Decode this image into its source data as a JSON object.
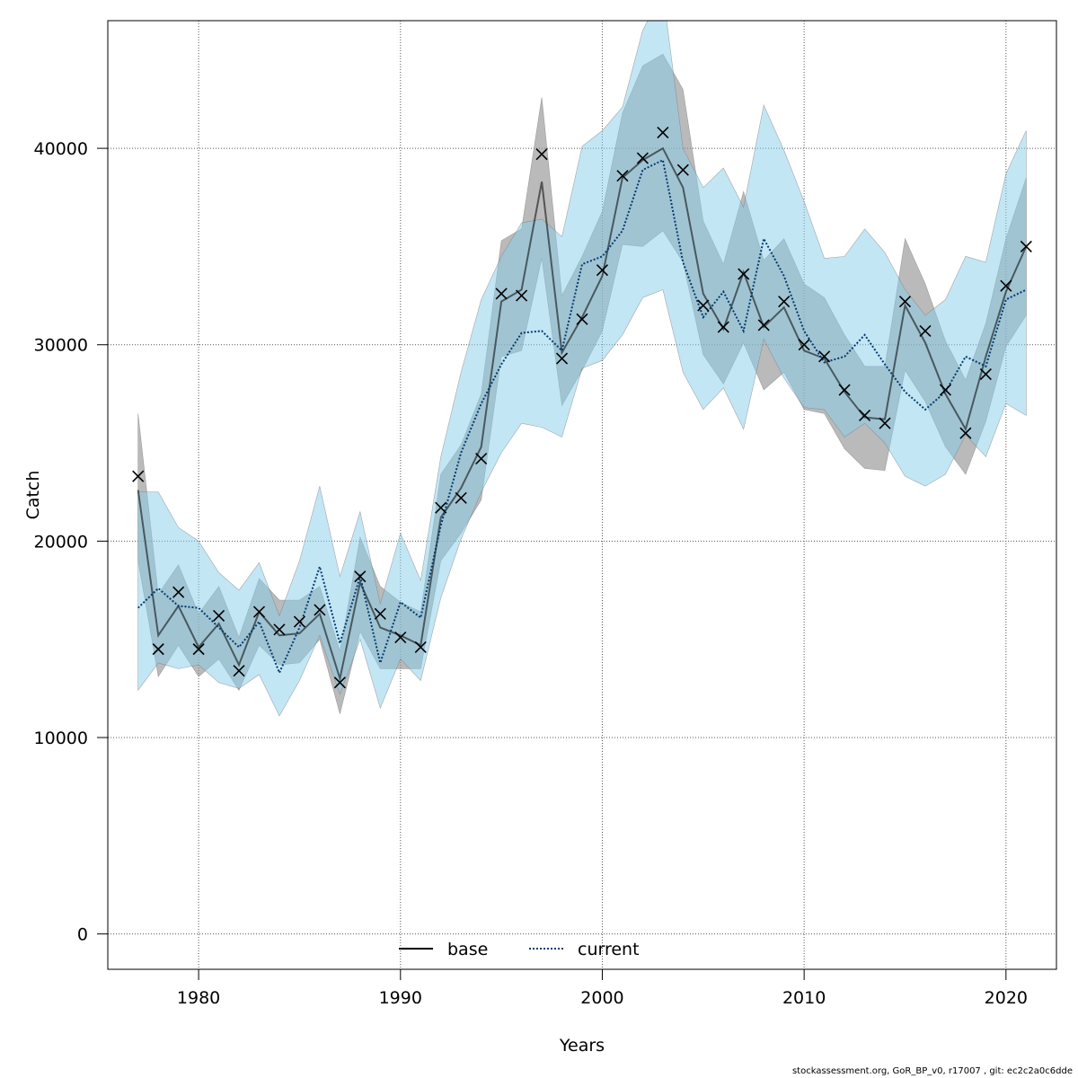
{
  "chart_data": {
    "type": "line",
    "title": "",
    "xlabel": "Years",
    "ylabel": "Catch",
    "xlim": [
      1975.5,
      2022.5
    ],
    "ylim": [
      -1800,
      46500
    ],
    "x_ticks": [
      1980,
      1990,
      2000,
      2010,
      2020
    ],
    "x_tick_labels": [
      "1980",
      "1990",
      "2000",
      "2010",
      "2020"
    ],
    "y_ticks": [
      0,
      10000,
      20000,
      30000,
      40000
    ],
    "y_tick_labels": [
      "0",
      "10000",
      "20000",
      "30000",
      "40000"
    ],
    "grid": true,
    "legend_position": "bottom-center",
    "years": [
      1977,
      1978,
      1979,
      1980,
      1981,
      1982,
      1983,
      1984,
      1985,
      1986,
      1987,
      1988,
      1989,
      1990,
      1991,
      1992,
      1993,
      1994,
      1995,
      1996,
      1997,
      1998,
      1999,
      2000,
      2001,
      2002,
      2003,
      2004,
      2005,
      2006,
      2007,
      2008,
      2009,
      2010,
      2011,
      2012,
      2013,
      2014,
      2015,
      2016,
      2017,
      2018,
      2019,
      2020,
      2021
    ],
    "observed": {
      "marker": "x",
      "values": [
        23300,
        14500,
        17400,
        14500,
        16200,
        13400,
        16400,
        15500,
        15900,
        16500,
        12800,
        18200,
        16300,
        15100,
        14600,
        21700,
        22200,
        24200,
        32600,
        32500,
        39700,
        29300,
        31300,
        33800,
        38600,
        39500,
        40800,
        38900,
        32000,
        30900,
        33600,
        31000,
        32200,
        30000,
        29400,
        27700,
        26400,
        26000,
        32200,
        30700,
        27700,
        25500,
        28500,
        33000,
        35000
      ]
    },
    "series": [
      {
        "name": "base",
        "color": "#000000",
        "band_color": "#8c8c8c",
        "line_style": "solid",
        "values": [
          22600,
          15200,
          16700,
          14600,
          15800,
          13700,
          16400,
          15200,
          15300,
          16300,
          13000,
          17900,
          15600,
          15200,
          14700,
          21200,
          22700,
          24800,
          32200,
          32800,
          38300,
          29600,
          31400,
          33500,
          38500,
          39400,
          40000,
          38000,
          32600,
          30800,
          33700,
          30900,
          31900,
          29700,
          29300,
          27600,
          26300,
          26200,
          32000,
          30100,
          27500,
          25700,
          29400,
          32700,
          35000
        ],
        "lower": [
          19000,
          13100,
          14700,
          13100,
          14000,
          12400,
          14700,
          13700,
          13800,
          15000,
          11200,
          15400,
          13500,
          13500,
          13500,
          19000,
          20400,
          22100,
          29400,
          29700,
          34400,
          26900,
          28700,
          30700,
          35100,
          35000,
          35800,
          34200,
          29500,
          28000,
          30100,
          27700,
          28600,
          26700,
          26500,
          24700,
          23700,
          23600,
          28700,
          27100,
          24800,
          23400,
          26100,
          29900,
          31500
        ],
        "upper": [
          26500,
          17300,
          18800,
          16300,
          17700,
          15100,
          18100,
          17000,
          17000,
          17700,
          14400,
          20200,
          17700,
          16900,
          16400,
          23400,
          24900,
          27500,
          35300,
          35900,
          42600,
          32500,
          34500,
          36800,
          41800,
          44200,
          44800,
          43000,
          36300,
          34100,
          37800,
          34300,
          35400,
          33100,
          32400,
          30500,
          28900,
          28900,
          35400,
          33100,
          30200,
          28200,
          31100,
          35400,
          38500
        ]
      },
      {
        "name": "current",
        "color": "#003b6f",
        "band_color": "#87ceeb",
        "line_style": "dotted",
        "values": [
          16600,
          17600,
          16700,
          16600,
          15600,
          14600,
          15900,
          13300,
          15600,
          18700,
          14800,
          18200,
          13800,
          16900,
          16100,
          20800,
          24500,
          27000,
          29000,
          30600,
          30700,
          29700,
          34100,
          34500,
          35800,
          38900,
          39400,
          34200,
          31400,
          32700,
          30700,
          35400,
          33500,
          30700,
          29100,
          29400,
          30500,
          29000,
          27600,
          26700,
          27600,
          29400,
          28900,
          32300,
          32800
        ],
        "lower": [
          12400,
          13800,
          13500,
          13700,
          12800,
          12500,
          13200,
          11100,
          12900,
          15200,
          12200,
          15000,
          11500,
          14000,
          12900,
          17100,
          20100,
          22500,
          24500,
          26000,
          25800,
          25300,
          28800,
          29200,
          30500,
          32400,
          32800,
          28600,
          26700,
          27800,
          25700,
          30300,
          28300,
          26800,
          26700,
          25300,
          26000,
          25000,
          23300,
          22800,
          23400,
          25400,
          24300,
          27000,
          26400
        ],
        "upper": [
          22500,
          22500,
          20700,
          20000,
          18400,
          17500,
          18900,
          16200,
          19000,
          22800,
          18200,
          21500,
          16800,
          20400,
          18000,
          24300,
          28600,
          32300,
          34500,
          36200,
          36400,
          35500,
          40100,
          40900,
          42100,
          46000,
          48000,
          40000,
          38000,
          39000,
          37000,
          42200,
          39900,
          37300,
          34400,
          34500,
          35900,
          34700,
          32800,
          31500,
          32300,
          34500,
          34200,
          38700,
          40900
        ]
      }
    ]
  },
  "footer": "stockassessment.org, GoR_BP_v0, r17007 , git: ec2c2a0c6dde"
}
